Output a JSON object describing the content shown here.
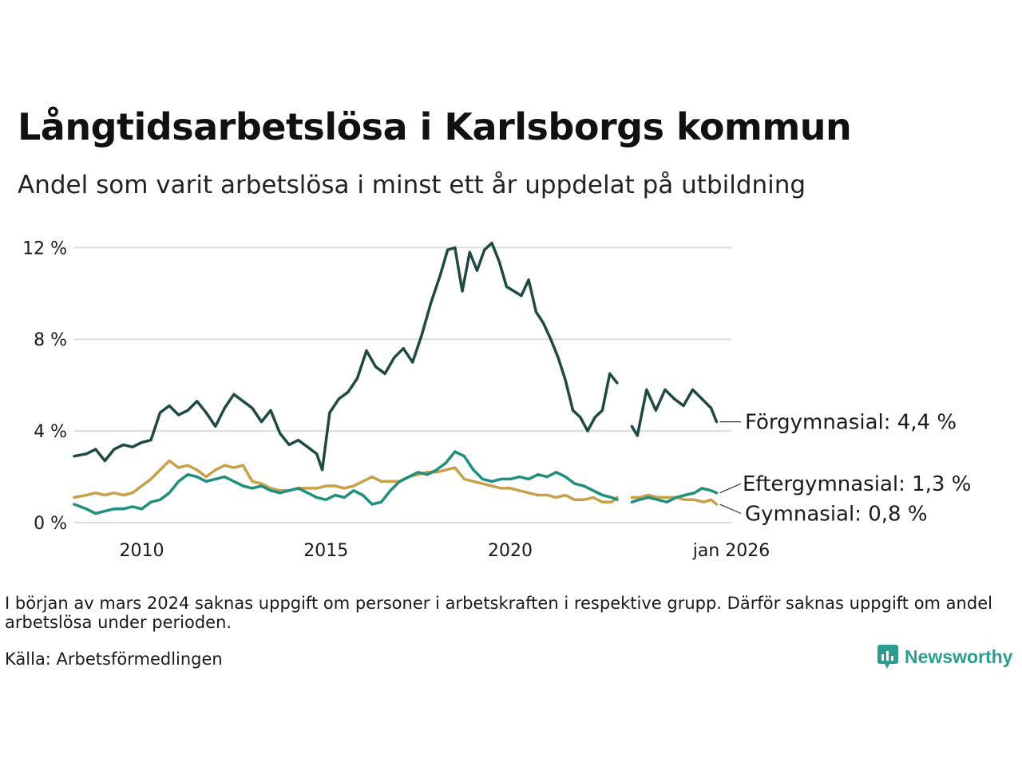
{
  "header": {
    "title": "Långtidsarbetslösa i Karlsborgs kommun",
    "subtitle": "Andel som varit arbetslösa i minst ett år uppdelat på utbildning"
  },
  "footer": {
    "note": "I början av mars 2024 saknas uppgift om personer i arbetskraften i respektive grupp. Därför saknas uppgift om andel arbetslösa under perioden.",
    "source": "Källa: Arbetsförmedlingen",
    "brand": "Newsworthy"
  },
  "chart_data": {
    "type": "line",
    "title": "Långtidsarbetslösa i Karlsborgs kommun",
    "subtitle": "Andel som varit arbetslösa i minst ett år uppdelat på utbildning",
    "xlabel": "",
    "ylabel": "",
    "xlim": [
      2008.17,
      2026.0
    ],
    "ylim": [
      0,
      12.5
    ],
    "x_ticks": [
      {
        "value": 2010,
        "label": "2010"
      },
      {
        "value": 2015,
        "label": "2015"
      },
      {
        "value": 2020,
        "label": "2020"
      },
      {
        "value": 2026,
        "label": "jan 2026"
      }
    ],
    "y_ticks": [
      {
        "value": 0,
        "label": "0 %"
      },
      {
        "value": 4,
        "label": "4 %"
      },
      {
        "value": 8,
        "label": "8 %"
      },
      {
        "value": 12,
        "label": "12 %"
      }
    ],
    "grid": true,
    "series": [
      {
        "name": "Förgymnasial",
        "end_label": "Förgymnasial: 4,4 %",
        "color": "#1f4a44",
        "points": [
          [
            2008.17,
            2.9
          ],
          [
            2008.5,
            3.0
          ],
          [
            2008.75,
            3.2
          ],
          [
            2009.0,
            2.7
          ],
          [
            2009.25,
            3.2
          ],
          [
            2009.5,
            3.4
          ],
          [
            2009.75,
            3.3
          ],
          [
            2010.0,
            3.5
          ],
          [
            2010.25,
            3.6
          ],
          [
            2010.5,
            4.8
          ],
          [
            2010.75,
            5.1
          ],
          [
            2011.0,
            4.7
          ],
          [
            2011.25,
            4.9
          ],
          [
            2011.5,
            5.3
          ],
          [
            2011.75,
            4.8
          ],
          [
            2012.0,
            4.2
          ],
          [
            2012.25,
            5.0
          ],
          [
            2012.5,
            5.6
          ],
          [
            2012.75,
            5.3
          ],
          [
            2013.0,
            5.0
          ],
          [
            2013.25,
            4.4
          ],
          [
            2013.5,
            4.9
          ],
          [
            2013.75,
            3.9
          ],
          [
            2014.0,
            3.4
          ],
          [
            2014.25,
            3.6
          ],
          [
            2014.5,
            3.3
          ],
          [
            2014.75,
            3.0
          ],
          [
            2014.9,
            2.3
          ],
          [
            2015.1,
            4.8
          ],
          [
            2015.35,
            5.4
          ],
          [
            2015.6,
            5.7
          ],
          [
            2015.85,
            6.3
          ],
          [
            2016.1,
            7.5
          ],
          [
            2016.35,
            6.8
          ],
          [
            2016.6,
            6.5
          ],
          [
            2016.85,
            7.2
          ],
          [
            2017.1,
            7.6
          ],
          [
            2017.35,
            7.0
          ],
          [
            2017.6,
            8.2
          ],
          [
            2017.85,
            9.6
          ],
          [
            2018.1,
            10.8
          ],
          [
            2018.3,
            11.9
          ],
          [
            2018.5,
            12.0
          ],
          [
            2018.7,
            10.1
          ],
          [
            2018.9,
            11.8
          ],
          [
            2019.1,
            11.0
          ],
          [
            2019.3,
            11.9
          ],
          [
            2019.5,
            12.2
          ],
          [
            2019.7,
            11.4
          ],
          [
            2019.9,
            10.3
          ],
          [
            2020.1,
            10.1
          ],
          [
            2020.3,
            9.9
          ],
          [
            2020.5,
            10.6
          ],
          [
            2020.7,
            9.2
          ],
          [
            2020.9,
            8.7
          ],
          [
            2021.1,
            8.0
          ],
          [
            2021.3,
            7.2
          ],
          [
            2021.5,
            6.2
          ],
          [
            2021.7,
            4.9
          ],
          [
            2021.9,
            4.6
          ],
          [
            2022.1,
            4.0
          ],
          [
            2022.3,
            4.6
          ],
          [
            2022.5,
            4.9
          ],
          [
            2022.7,
            6.5
          ],
          [
            2022.9,
            6.1
          ]
        ],
        "points_after_gap": [
          [
            2023.3,
            4.2
          ],
          [
            2023.45,
            3.8
          ],
          [
            2023.7,
            5.8
          ],
          [
            2023.95,
            4.9
          ],
          [
            2024.2,
            5.8
          ],
          [
            2024.45,
            5.4
          ],
          [
            2024.7,
            5.1
          ],
          [
            2024.95,
            5.8
          ],
          [
            2025.2,
            5.4
          ],
          [
            2025.45,
            5.0
          ],
          [
            2025.6,
            4.4
          ]
        ]
      },
      {
        "name": "Eftergymnasial",
        "end_label": "Eftergymnasial: 1,3 %",
        "color": "#1f8f7e",
        "points": [
          [
            2008.17,
            0.8
          ],
          [
            2008.5,
            0.6
          ],
          [
            2008.75,
            0.4
          ],
          [
            2009.0,
            0.5
          ],
          [
            2009.25,
            0.6
          ],
          [
            2009.5,
            0.6
          ],
          [
            2009.75,
            0.7
          ],
          [
            2010.0,
            0.6
          ],
          [
            2010.25,
            0.9
          ],
          [
            2010.5,
            1.0
          ],
          [
            2010.75,
            1.3
          ],
          [
            2011.0,
            1.8
          ],
          [
            2011.25,
            2.1
          ],
          [
            2011.5,
            2.0
          ],
          [
            2011.75,
            1.8
          ],
          [
            2012.0,
            1.9
          ],
          [
            2012.25,
            2.0
          ],
          [
            2012.5,
            1.8
          ],
          [
            2012.75,
            1.6
          ],
          [
            2013.0,
            1.5
          ],
          [
            2013.25,
            1.6
          ],
          [
            2013.5,
            1.4
          ],
          [
            2013.75,
            1.3
          ],
          [
            2014.0,
            1.4
          ],
          [
            2014.25,
            1.5
          ],
          [
            2014.5,
            1.3
          ],
          [
            2014.75,
            1.1
          ],
          [
            2015.0,
            1.0
          ],
          [
            2015.25,
            1.2
          ],
          [
            2015.5,
            1.1
          ],
          [
            2015.75,
            1.4
          ],
          [
            2016.0,
            1.2
          ],
          [
            2016.25,
            0.8
          ],
          [
            2016.5,
            0.9
          ],
          [
            2016.75,
            1.4
          ],
          [
            2017.0,
            1.8
          ],
          [
            2017.25,
            2.0
          ],
          [
            2017.5,
            2.2
          ],
          [
            2017.75,
            2.1
          ],
          [
            2018.0,
            2.3
          ],
          [
            2018.25,
            2.6
          ],
          [
            2018.5,
            3.1
          ],
          [
            2018.75,
            2.9
          ],
          [
            2019.0,
            2.3
          ],
          [
            2019.25,
            1.9
          ],
          [
            2019.5,
            1.8
          ],
          [
            2019.75,
            1.9
          ],
          [
            2020.0,
            1.9
          ],
          [
            2020.25,
            2.0
          ],
          [
            2020.5,
            1.9
          ],
          [
            2020.75,
            2.1
          ],
          [
            2021.0,
            2.0
          ],
          [
            2021.25,
            2.2
          ],
          [
            2021.5,
            2.0
          ],
          [
            2021.75,
            1.7
          ],
          [
            2022.0,
            1.6
          ],
          [
            2022.25,
            1.4
          ],
          [
            2022.5,
            1.2
          ],
          [
            2022.75,
            1.1
          ],
          [
            2022.9,
            1.0
          ]
        ],
        "points_after_gap": [
          [
            2023.3,
            0.9
          ],
          [
            2023.5,
            1.0
          ],
          [
            2023.75,
            1.1
          ],
          [
            2024.0,
            1.0
          ],
          [
            2024.25,
            0.9
          ],
          [
            2024.5,
            1.1
          ],
          [
            2024.75,
            1.2
          ],
          [
            2025.0,
            1.3
          ],
          [
            2025.2,
            1.5
          ],
          [
            2025.45,
            1.4
          ],
          [
            2025.6,
            1.3
          ]
        ]
      },
      {
        "name": "Gymnasial",
        "end_label": "Gymnasial: 0,8 %",
        "color": "#c9a04a",
        "points": [
          [
            2008.17,
            1.1
          ],
          [
            2008.5,
            1.2
          ],
          [
            2008.75,
            1.3
          ],
          [
            2009.0,
            1.2
          ],
          [
            2009.25,
            1.3
          ],
          [
            2009.5,
            1.2
          ],
          [
            2009.75,
            1.3
          ],
          [
            2010.0,
            1.6
          ],
          [
            2010.25,
            1.9
          ],
          [
            2010.5,
            2.3
          ],
          [
            2010.75,
            2.7
          ],
          [
            2011.0,
            2.4
          ],
          [
            2011.25,
            2.5
          ],
          [
            2011.5,
            2.3
          ],
          [
            2011.75,
            2.0
          ],
          [
            2012.0,
            2.3
          ],
          [
            2012.25,
            2.5
          ],
          [
            2012.5,
            2.4
          ],
          [
            2012.75,
            2.5
          ],
          [
            2013.0,
            1.8
          ],
          [
            2013.25,
            1.7
          ],
          [
            2013.5,
            1.5
          ],
          [
            2013.75,
            1.4
          ],
          [
            2014.0,
            1.4
          ],
          [
            2014.25,
            1.5
          ],
          [
            2014.5,
            1.5
          ],
          [
            2014.75,
            1.5
          ],
          [
            2015.0,
            1.6
          ],
          [
            2015.25,
            1.6
          ],
          [
            2015.5,
            1.5
          ],
          [
            2015.75,
            1.6
          ],
          [
            2016.0,
            1.8
          ],
          [
            2016.25,
            2.0
          ],
          [
            2016.5,
            1.8
          ],
          [
            2016.75,
            1.8
          ],
          [
            2017.0,
            1.8
          ],
          [
            2017.25,
            2.0
          ],
          [
            2017.5,
            2.1
          ],
          [
            2017.75,
            2.2
          ],
          [
            2018.0,
            2.2
          ],
          [
            2018.25,
            2.3
          ],
          [
            2018.5,
            2.4
          ],
          [
            2018.75,
            1.9
          ],
          [
            2019.0,
            1.8
          ],
          [
            2019.25,
            1.7
          ],
          [
            2019.5,
            1.6
          ],
          [
            2019.75,
            1.5
          ],
          [
            2020.0,
            1.5
          ],
          [
            2020.25,
            1.4
          ],
          [
            2020.5,
            1.3
          ],
          [
            2020.75,
            1.2
          ],
          [
            2021.0,
            1.2
          ],
          [
            2021.25,
            1.1
          ],
          [
            2021.5,
            1.2
          ],
          [
            2021.75,
            1.0
          ],
          [
            2022.0,
            1.0
          ],
          [
            2022.25,
            1.1
          ],
          [
            2022.5,
            0.9
          ],
          [
            2022.75,
            0.9
          ],
          [
            2022.9,
            1.1
          ]
        ],
        "points_after_gap": [
          [
            2023.3,
            1.1
          ],
          [
            2023.5,
            1.1
          ],
          [
            2023.75,
            1.2
          ],
          [
            2024.0,
            1.1
          ],
          [
            2024.25,
            1.1
          ],
          [
            2024.5,
            1.1
          ],
          [
            2024.75,
            1.0
          ],
          [
            2025.0,
            1.0
          ],
          [
            2025.25,
            0.9
          ],
          [
            2025.45,
            1.0
          ],
          [
            2025.6,
            0.8
          ]
        ]
      }
    ]
  }
}
